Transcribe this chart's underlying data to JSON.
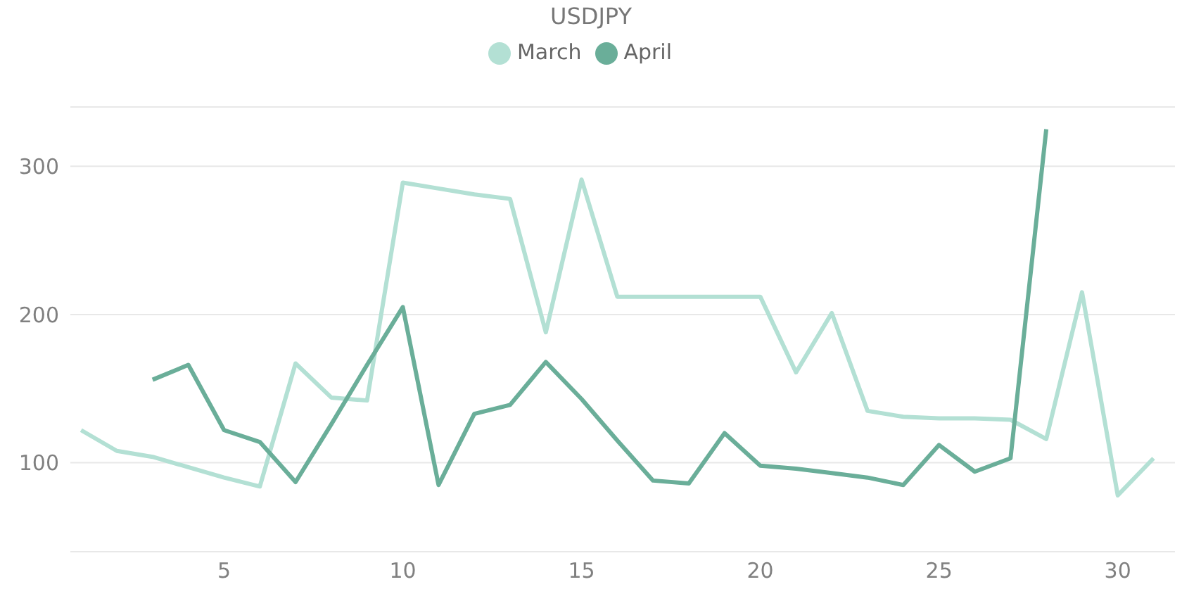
{
  "chart_data": {
    "type": "line",
    "title": "USDJPY",
    "x": [
      1,
      2,
      3,
      4,
      5,
      6,
      7,
      8,
      9,
      10,
      11,
      12,
      13,
      14,
      15,
      16,
      17,
      18,
      19,
      20,
      21,
      22,
      23,
      24,
      25,
      26,
      27,
      28,
      29,
      30,
      31
    ],
    "series": [
      {
        "name": "March",
        "color": "#b3e0d4",
        "values": [
          122,
          108,
          104,
          97,
          90,
          84,
          167,
          144,
          142,
          289,
          285,
          281,
          278,
          188,
          291,
          212,
          212,
          212,
          212,
          212,
          161,
          201,
          135,
          131,
          130,
          130,
          129,
          116,
          215,
          78,
          103
        ]
      },
      {
        "name": "April",
        "color": "#6aae99",
        "values": [
          null,
          null,
          156,
          166,
          122,
          114,
          87,
          126,
          166,
          205,
          85,
          133,
          139,
          168,
          143,
          115,
          88,
          86,
          120,
          98,
          96,
          93,
          90,
          85,
          112,
          94,
          103,
          325,
          null,
          null,
          null
        ]
      }
    ],
    "xlim": [
      0.7,
      31.6
    ],
    "xticks": [
      5,
      10,
      15,
      20,
      25,
      30
    ],
    "ylim": [
      40,
      340
    ],
    "yticks": [
      100,
      200,
      300
    ],
    "grid": "y",
    "legend": "top",
    "marker": "none",
    "line_style": "solid"
  }
}
